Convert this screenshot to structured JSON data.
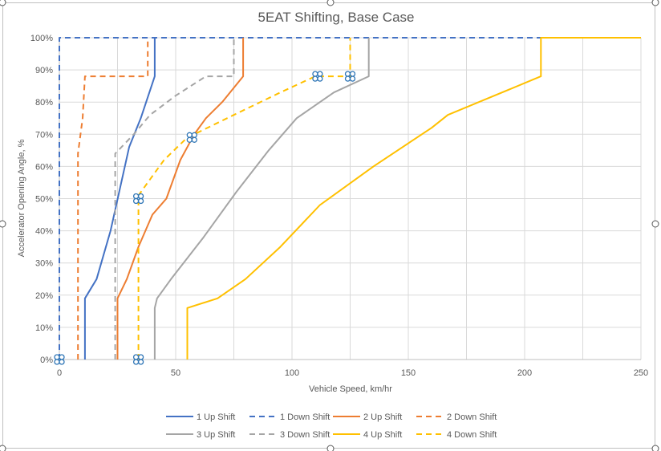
{
  "chart_data": {
    "type": "line",
    "title": "5EAT Shifting, Base Case",
    "xlabel": "Vehicle Speed, km/hr",
    "ylabel": "Accelerator Opening Angle, %",
    "xlim": [
      0,
      250
    ],
    "ylim": [
      0,
      100
    ],
    "x_ticks": [
      "0",
      "50",
      "100",
      "150",
      "200",
      "250"
    ],
    "x_tick_values": [
      0,
      50,
      100,
      150,
      200,
      250
    ],
    "y_ticks": [
      "0%",
      "10%",
      "20%",
      "30%",
      "40%",
      "50%",
      "60%",
      "70%",
      "80%",
      "90%",
      "100%"
    ],
    "y_tick_values": [
      0,
      10,
      20,
      30,
      40,
      50,
      60,
      70,
      80,
      90,
      100
    ],
    "grid": true,
    "legend_position": "bottom",
    "series": [
      {
        "name": "1 Up Shift",
        "color": "#4472c4",
        "dash": "solid",
        "points": [
          [
            11,
            0
          ],
          [
            11,
            19
          ],
          [
            16,
            25
          ],
          [
            22,
            40
          ],
          [
            30,
            66
          ],
          [
            35,
            75
          ],
          [
            41,
            88
          ],
          [
            41,
            100
          ]
        ]
      },
      {
        "name": "1 Down Shift",
        "color": "#4472c4",
        "dash": "dashed",
        "points": [
          [
            0,
            0
          ],
          [
            0,
            100
          ],
          [
            250,
            100
          ]
        ]
      },
      {
        "name": "2 Up Shift",
        "color": "#ed7d31",
        "dash": "solid",
        "points": [
          [
            25,
            0
          ],
          [
            25,
            19
          ],
          [
            29,
            25
          ],
          [
            34,
            35
          ],
          [
            40,
            45
          ],
          [
            46,
            50
          ],
          [
            52,
            62
          ],
          [
            58,
            70
          ],
          [
            63,
            75
          ],
          [
            70,
            80
          ],
          [
            79,
            88
          ],
          [
            79,
            100
          ]
        ]
      },
      {
        "name": "2 Down Shift",
        "color": "#ed7d31",
        "dash": "dashed",
        "points": [
          [
            8,
            0
          ],
          [
            8,
            64
          ],
          [
            10,
            75
          ],
          [
            11,
            88
          ],
          [
            38,
            88
          ],
          [
            38,
            100
          ]
        ]
      },
      {
        "name": "3 Up Shift",
        "color": "#a5a5a5",
        "dash": "solid",
        "points": [
          [
            41,
            0
          ],
          [
            41,
            16
          ],
          [
            42,
            19
          ],
          [
            48,
            25
          ],
          [
            62,
            38
          ],
          [
            76,
            52
          ],
          [
            90,
            65
          ],
          [
            102,
            75
          ],
          [
            118,
            83
          ],
          [
            133,
            88
          ],
          [
            133,
            100
          ]
        ]
      },
      {
        "name": "3 Down Shift",
        "color": "#a5a5a5",
        "dash": "dashed",
        "points": [
          [
            24,
            0
          ],
          [
            24,
            64
          ],
          [
            32,
            70
          ],
          [
            39,
            76
          ],
          [
            50,
            82
          ],
          [
            63,
            88
          ],
          [
            75,
            88
          ],
          [
            75,
            100
          ]
        ]
      },
      {
        "name": "4 Up Shift",
        "color": "#ffc000",
        "dash": "solid",
        "points": [
          [
            55,
            0
          ],
          [
            55,
            16
          ],
          [
            68,
            19
          ],
          [
            80,
            25
          ],
          [
            95,
            35
          ],
          [
            112,
            48
          ],
          [
            135,
            60
          ],
          [
            160,
            72
          ],
          [
            167,
            76
          ],
          [
            207,
            88
          ],
          [
            207,
            100
          ],
          [
            250,
            100
          ]
        ]
      },
      {
        "name": "4 Down Shift",
        "color": "#ffc000",
        "dash": "dashed",
        "points": [
          [
            34,
            0
          ],
          [
            34,
            51
          ],
          [
            40,
            57
          ],
          [
            45,
            62
          ],
          [
            55,
            69
          ],
          [
            58,
            70
          ],
          [
            75,
            76
          ],
          [
            95,
            83
          ],
          [
            110,
            88
          ],
          [
            125,
            88
          ],
          [
            125,
            100
          ]
        ]
      }
    ],
    "markers": [
      [
        0,
        0
      ],
      [
        34,
        0
      ],
      [
        34,
        50
      ],
      [
        57,
        69
      ],
      [
        111,
        88
      ],
      [
        125,
        88
      ]
    ]
  }
}
